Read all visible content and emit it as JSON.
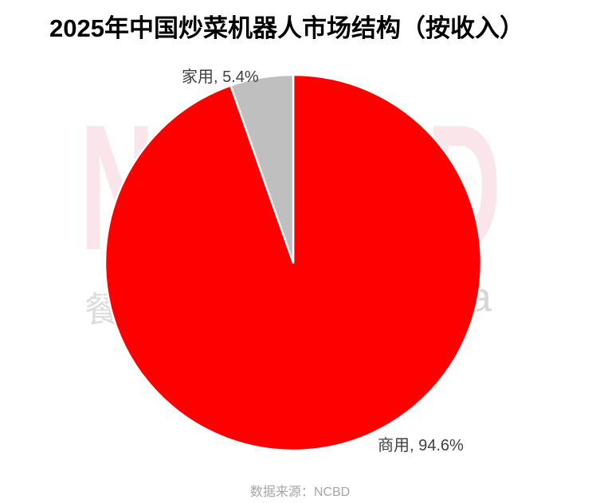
{
  "title": {
    "text": "2025年中国炒菜机器人市场结构（按收入）"
  },
  "source": {
    "text": "数据来源：NCBD"
  },
  "watermark": {
    "letters": [
      "N",
      "C",
      "B",
      "D"
    ],
    "glyph_left": "餐",
    "glyph_right": "a",
    "pink_color": "#fae6ea",
    "gray_color": "#dcdcdc"
  },
  "chart_data": {
    "type": "pie",
    "title": "2025年中国炒菜机器人市场结构（按收入）",
    "source": "数据来源：NCBD",
    "start_angle_deg": 0,
    "direction": "clockwise",
    "separator_color": "#ffffff",
    "legend_position": "none",
    "slices": [
      {
        "name": "commercial",
        "label": "商用",
        "value": 94.6,
        "unit": "%",
        "color": "#ff0000",
        "data_label": "商用, 94.6%"
      },
      {
        "name": "household",
        "label": "家用",
        "value": 5.4,
        "unit": "%",
        "color": "#bfbfbf",
        "data_label": "家用, 5.4%"
      }
    ]
  }
}
